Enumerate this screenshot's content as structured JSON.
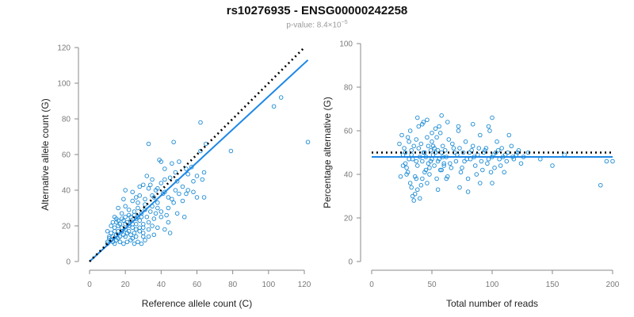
{
  "title": "rs10276935 - ENSG00000242258",
  "subtitle": {
    "prefix": "p-value: 8.4×10",
    "exponent": "−5"
  },
  "colors": {
    "points": "#1a8ad4",
    "fit_line": "#1e88e5",
    "reference_line": "#000000"
  },
  "chart_data": [
    {
      "type": "scatter",
      "xlabel": "Reference allele count (C)",
      "ylabel": "Alternative allele count (G)",
      "xlim": [
        0,
        120
      ],
      "ylim": [
        0,
        120
      ],
      "xticks": [
        0,
        20,
        40,
        60,
        80,
        100,
        120
      ],
      "yticks": [
        0,
        20,
        40,
        60,
        80,
        100,
        120
      ],
      "grid": false,
      "reference_line": {
        "style": "dotted",
        "x": [
          0,
          120
        ],
        "y": [
          0,
          120
        ]
      },
      "fit_line": {
        "style": "solid",
        "x": [
          0,
          122
        ],
        "y": [
          0,
          113
        ]
      },
      "points": [
        [
          103,
          87
        ],
        [
          107,
          92
        ],
        [
          122,
          67
        ],
        [
          62,
          78
        ],
        [
          79,
          62
        ],
        [
          33,
          66
        ],
        [
          47,
          67
        ],
        [
          62,
          62
        ],
        [
          65,
          66
        ],
        [
          39,
          57
        ],
        [
          40,
          56
        ],
        [
          46,
          55
        ],
        [
          50,
          56
        ],
        [
          42,
          52
        ],
        [
          48,
          50
        ],
        [
          54,
          52
        ],
        [
          57,
          53
        ],
        [
          55,
          49
        ],
        [
          60,
          48
        ],
        [
          32,
          48
        ],
        [
          35,
          46
        ],
        [
          30,
          43
        ],
        [
          33,
          41
        ],
        [
          40,
          44
        ],
        [
          42,
          46
        ],
        [
          45,
          47
        ],
        [
          49,
          45
        ],
        [
          52,
          42
        ],
        [
          58,
          45
        ],
        [
          63,
          46
        ],
        [
          64,
          50
        ],
        [
          54,
          38
        ],
        [
          58,
          39
        ],
        [
          60,
          36
        ],
        [
          52,
          34
        ],
        [
          47,
          33
        ],
        [
          44,
          30
        ],
        [
          49,
          27
        ],
        [
          53,
          25
        ],
        [
          44,
          22
        ],
        [
          64,
          36
        ],
        [
          20,
          40
        ],
        [
          24,
          39
        ],
        [
          28,
          37
        ],
        [
          31,
          35
        ],
        [
          36,
          36
        ],
        [
          38,
          33
        ],
        [
          27,
          33
        ],
        [
          24,
          34
        ],
        [
          19,
          35
        ],
        [
          16,
          30
        ],
        [
          20,
          31
        ],
        [
          22,
          29
        ],
        [
          25,
          28
        ],
        [
          29,
          27
        ],
        [
          31,
          29
        ],
        [
          34,
          28
        ],
        [
          37,
          27
        ],
        [
          40,
          25
        ],
        [
          36,
          24
        ],
        [
          33,
          22
        ],
        [
          30,
          21
        ],
        [
          28,
          23
        ],
        [
          26,
          24
        ],
        [
          23,
          25
        ],
        [
          20,
          25
        ],
        [
          18,
          24
        ],
        [
          16,
          23
        ],
        [
          14,
          25
        ],
        [
          13,
          22
        ],
        [
          14,
          19
        ],
        [
          16,
          20
        ],
        [
          18,
          19
        ],
        [
          20,
          21
        ],
        [
          22,
          20
        ],
        [
          24,
          19
        ],
        [
          26,
          18
        ],
        [
          28,
          17
        ],
        [
          25,
          16
        ],
        [
          23,
          15
        ],
        [
          21,
          16
        ],
        [
          19,
          15
        ],
        [
          17,
          14
        ],
        [
          15,
          15
        ],
        [
          13,
          14
        ],
        [
          12,
          12
        ],
        [
          10,
          11
        ],
        [
          11,
          13
        ],
        [
          13,
          11
        ],
        [
          15,
          12
        ],
        [
          17,
          11
        ],
        [
          19,
          10
        ],
        [
          21,
          11
        ],
        [
          23,
          12
        ],
        [
          25,
          10
        ],
        [
          27,
          11
        ],
        [
          29,
          10
        ],
        [
          31,
          12
        ],
        [
          30,
          16
        ],
        [
          33,
          18
        ],
        [
          35,
          20
        ],
        [
          38,
          19
        ],
        [
          42,
          18
        ],
        [
          45,
          16
        ],
        [
          10,
          17
        ],
        [
          12,
          16
        ],
        [
          14,
          17
        ],
        [
          16,
          17
        ],
        [
          18,
          17
        ],
        [
          20,
          18
        ],
        [
          22,
          17
        ],
        [
          24,
          21
        ],
        [
          26,
          21
        ],
        [
          28,
          19
        ],
        [
          30,
          19
        ],
        [
          17,
          21
        ],
        [
          15,
          22
        ],
        [
          19,
          23
        ],
        [
          21,
          22
        ],
        [
          23,
          23
        ],
        [
          25,
          26
        ],
        [
          27,
          25
        ],
        [
          29,
          25
        ],
        [
          32,
          25
        ],
        [
          35,
          31
        ],
        [
          38,
          30
        ],
        [
          40,
          28
        ],
        [
          43,
          26
        ],
        [
          37,
          40
        ],
        [
          41,
          38
        ],
        [
          44,
          36
        ],
        [
          46,
          35
        ],
        [
          50,
          38
        ],
        [
          55,
          40
        ],
        [
          48,
          40
        ],
        [
          35,
          37
        ],
        [
          31,
          32
        ],
        [
          27,
          30
        ],
        [
          22,
          26
        ],
        [
          18,
          27
        ],
        [
          15,
          24
        ],
        [
          12,
          20
        ],
        [
          11,
          14
        ],
        [
          14,
          10
        ],
        [
          16,
          13
        ],
        [
          20,
          14
        ],
        [
          24,
          13
        ],
        [
          26,
          14
        ],
        [
          30,
          14
        ],
        [
          10,
          10
        ],
        [
          33,
          14
        ],
        [
          36,
          15
        ],
        [
          26,
          36
        ],
        [
          28,
          42
        ],
        [
          34,
          43
        ],
        [
          38,
          41
        ],
        [
          42,
          39
        ]
      ]
    },
    {
      "type": "scatter",
      "xlabel": "Total number of reads",
      "ylabel": "Percentage alternative (G)",
      "xlim": [
        0,
        200
      ],
      "ylim": [
        0,
        100
      ],
      "xticks": [
        0,
        50,
        100,
        150,
        200
      ],
      "yticks": [
        0,
        20,
        40,
        60,
        80,
        100
      ],
      "grid": false,
      "reference_line": {
        "style": "dotted",
        "x": [
          0,
          200
        ],
        "y": [
          50,
          50
        ]
      },
      "fit_line": {
        "style": "solid",
        "x": [
          0,
          200
        ],
        "y": [
          48,
          48
        ]
      },
      "points": [
        [
          23,
          54
        ],
        [
          25,
          58
        ],
        [
          26,
          49
        ],
        [
          27,
          52
        ],
        [
          28,
          45
        ],
        [
          29,
          43
        ],
        [
          30,
          41
        ],
        [
          31,
          55
        ],
        [
          32,
          60
        ],
        [
          33,
          51
        ],
        [
          34,
          47
        ],
        [
          35,
          53
        ],
        [
          36,
          39
        ],
        [
          37,
          56
        ],
        [
          38,
          44
        ],
        [
          39,
          62
        ],
        [
          40,
          48
        ],
        [
          41,
          35
        ],
        [
          42,
          46
        ],
        [
          43,
          64
        ],
        [
          44,
          50
        ],
        [
          45,
          42
        ],
        [
          46,
          57
        ],
        [
          47,
          53
        ],
        [
          48,
          40
        ],
        [
          49,
          46
        ],
        [
          50,
          55
        ],
        [
          51,
          49
        ],
        [
          52,
          44
        ],
        [
          53,
          61
        ],
        [
          54,
          38
        ],
        [
          55,
          51
        ],
        [
          56,
          47
        ],
        [
          57,
          59
        ],
        [
          58,
          42
        ],
        [
          59,
          53
        ],
        [
          60,
          45
        ],
        [
          62,
          48
        ],
        [
          64,
          56
        ],
        [
          66,
          43
        ],
        [
          68,
          52
        ],
        [
          70,
          46
        ],
        [
          72,
          60
        ],
        [
          74,
          41
        ],
        [
          76,
          50
        ],
        [
          78,
          55
        ],
        [
          80,
          38
        ],
        [
          82,
          47
        ],
        [
          84,
          53
        ],
        [
          86,
          44
        ],
        [
          88,
          49
        ],
        [
          90,
          58
        ],
        [
          92,
          42
        ],
        [
          94,
          51
        ],
        [
          96,
          45
        ],
        [
          98,
          60
        ],
        [
          100,
          48
        ],
        [
          102,
          43
        ],
        [
          104,
          55
        ],
        [
          106,
          47
        ],
        [
          108,
          52
        ],
        [
          110,
          41
        ],
        [
          112,
          46
        ],
        [
          116,
          53
        ],
        [
          120,
          49
        ],
        [
          124,
          45
        ],
        [
          130,
          50
        ],
        [
          140,
          47
        ],
        [
          150,
          44
        ],
        [
          160,
          49
        ],
        [
          190,
          35
        ],
        [
          195,
          46
        ],
        [
          200,
          46
        ],
        [
          24,
          39
        ],
        [
          26,
          44
        ],
        [
          28,
          50
        ],
        [
          30,
          57
        ],
        [
          32,
          36
        ],
        [
          34,
          30
        ],
        [
          35,
          28
        ],
        [
          36,
          31
        ],
        [
          38,
          33
        ],
        [
          40,
          29
        ],
        [
          42,
          38
        ],
        [
          44,
          41
        ],
        [
          46,
          36
        ],
        [
          48,
          43
        ],
        [
          50,
          47
        ],
        [
          52,
          52
        ],
        [
          54,
          57
        ],
        [
          56,
          62
        ],
        [
          58,
          50
        ],
        [
          60,
          44
        ],
        [
          63,
          39
        ],
        [
          67,
          54
        ],
        [
          71,
          49
        ],
        [
          75,
          43
        ],
        [
          79,
          47
        ],
        [
          83,
          51
        ],
        [
          87,
          40
        ],
        [
          91,
          46
        ],
        [
          95,
          52
        ],
        [
          99,
          41
        ],
        [
          103,
          50
        ],
        [
          107,
          44
        ],
        [
          111,
          49
        ],
        [
          114,
          58
        ],
        [
          118,
          47
        ],
        [
          122,
          51
        ],
        [
          126,
          48
        ],
        [
          31,
          47
        ],
        [
          33,
          49
        ],
        [
          37,
          46
        ],
        [
          39,
          52
        ],
        [
          41,
          54
        ],
        [
          43,
          50
        ],
        [
          45,
          48
        ],
        [
          47,
          45
        ],
        [
          49,
          51
        ],
        [
          51,
          53
        ],
        [
          53,
          50
        ],
        [
          55,
          46
        ],
        [
          57,
          42
        ],
        [
          59,
          48
        ],
        [
          61,
          51
        ],
        [
          65,
          45
        ],
        [
          69,
          50
        ],
        [
          73,
          52
        ],
        [
          77,
          46
        ],
        [
          81,
          50
        ],
        [
          85,
          48
        ],
        [
          89,
          52
        ],
        [
          93,
          50
        ],
        [
          97,
          47
        ],
        [
          101,
          49
        ],
        [
          105,
          51
        ],
        [
          109,
          48
        ],
        [
          113,
          50
        ],
        [
          117,
          48
        ],
        [
          121,
          50
        ],
        [
          38,
          66
        ],
        [
          42,
          63
        ],
        [
          46,
          65
        ],
        [
          50,
          59
        ],
        [
          58,
          67
        ],
        [
          63,
          64
        ],
        [
          72,
          62
        ],
        [
          84,
          63
        ],
        [
          97,
          62
        ],
        [
          100,
          66
        ],
        [
          29,
          40
        ],
        [
          33,
          34
        ],
        [
          37,
          38
        ],
        [
          55,
          33
        ],
        [
          62,
          38
        ],
        [
          73,
          34
        ],
        [
          80,
          32
        ],
        [
          90,
          36
        ],
        [
          100,
          36
        ]
      ]
    }
  ]
}
